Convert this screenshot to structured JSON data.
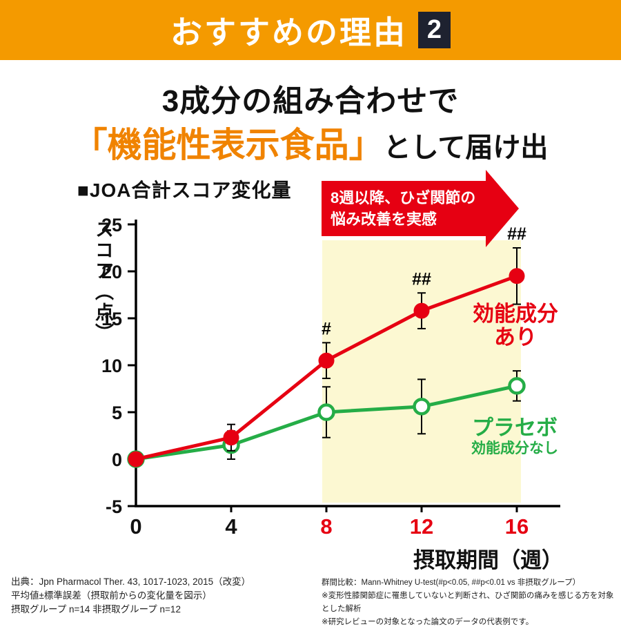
{
  "banner": {
    "title": "おすすめの理由",
    "number": "2"
  },
  "headline": {
    "line1": "3成分の組み合わせで",
    "line2_highlight": "「機能性表示食品」",
    "line2_rest": "として届け出"
  },
  "chart": {
    "title": "■JOA合計スコア変化量",
    "annotation_line1": "8週以降、ひざ関節の",
    "annotation_line2": "悩み改善を実感",
    "y_axis_label": "スコア（点）",
    "x_axis_label": "摂取期間（週）",
    "series_active_label_line1": "効能成分",
    "series_active_label_line2": "あり",
    "series_placebo_label_line1": "プラセボ",
    "series_placebo_label_line2": "効能成分なし"
  },
  "footnotes": {
    "left": [
      "出典：Jpn Pharmacol Ther. 43, 1017-1023, 2015（改変）",
      "平均値±標準誤差（摂取前からの変化量を図示）",
      "摂取グループ n=14 非摂取グループ n=12"
    ],
    "right": [
      "群間比較：Mann-Whitney U-test(#p<0.05, ##p<0.01 vs 非摂取グループ）",
      "※変形性膝関節症に罹患していないと判断され、ひざ関節の痛みを感じる方を対象とした解析",
      "※研究レビューの対象となった論文のデータの代表例です。"
    ]
  },
  "colors": {
    "banner_orange": "#F49A00",
    "headline_orange": "#F08300",
    "red": "#E60012",
    "green": "#25AD47",
    "highlight_yellow": "#FCF8D2",
    "number_box": "#1E2230"
  },
  "chart_data": {
    "type": "line",
    "title": "JOA合計スコア変化量",
    "xlabel": "摂取期間（週）",
    "ylabel": "スコア（点）",
    "x": [
      0,
      4,
      8,
      12,
      16
    ],
    "xtick_labels": [
      "0",
      "4",
      "8",
      "12",
      "16"
    ],
    "xtick_colors": [
      "#111111",
      "#111111",
      "#E60012",
      "#E60012",
      "#E60012"
    ],
    "ylim": [
      -5,
      25
    ],
    "yticks": [
      25,
      20,
      15,
      10,
      5,
      0,
      -5
    ],
    "grid": false,
    "highlight_region": {
      "x_start": 8,
      "x_end": 16,
      "color": "#FCF8D2"
    },
    "annotation": "8週以降、ひざ関節の悩み改善を実感",
    "series": [
      {
        "name": "効能成分あり",
        "color": "#E60012",
        "marker": "filled",
        "values": [
          0,
          2.3,
          10.5,
          15.8,
          19.5
        ],
        "error": [
          0.4,
          1.4,
          1.9,
          1.9,
          3.0
        ],
        "sig_labels": [
          "",
          "",
          "#",
          "##",
          "##"
        ]
      },
      {
        "name": "プラセボ（効能成分なし）",
        "color": "#25AD47",
        "marker": "open",
        "values": [
          0,
          1.5,
          5.0,
          5.6,
          7.8
        ],
        "error": [
          0.4,
          1.5,
          2.7,
          2.9,
          1.6
        ],
        "sig_labels": [
          "",
          "",
          "",
          "",
          ""
        ]
      }
    ]
  }
}
